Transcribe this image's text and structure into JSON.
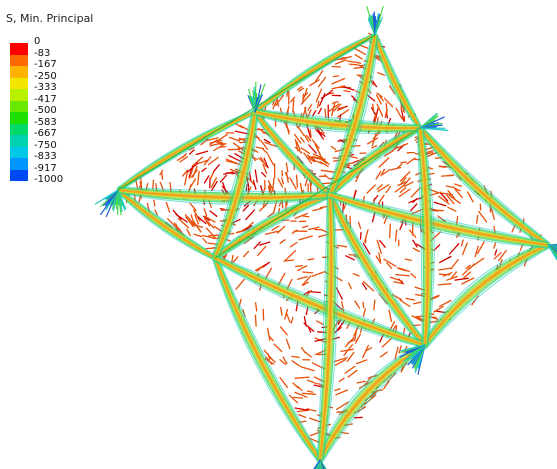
{
  "legend": {
    "title": "S, Min. Principal",
    "ticks": [
      "0",
      "-83",
      "-167",
      "-250",
      "-333",
      "-417",
      "-500",
      "-583",
      "-667",
      "-750",
      "-833",
      "-917",
      "-1000"
    ],
    "colors": [
      "#ff0000",
      "#ff6a00",
      "#ffb300",
      "#f2e600",
      "#b8f000",
      "#6ae800",
      "#1ee000",
      "#00d86a",
      "#00d2b0",
      "#00c6e8",
      "#0096ff",
      "#0048f4",
      "#0000e6"
    ]
  },
  "viz_colors": {
    "tension": "#e8500a",
    "low": "#d40000",
    "rib_outer": "#19c8c8",
    "rib_mid": "#4ad84a",
    "rib_core": "#e8e030",
    "rib_hot": "#f0a020",
    "base": "#1a5fd6",
    "edge": "#1fb84a"
  }
}
